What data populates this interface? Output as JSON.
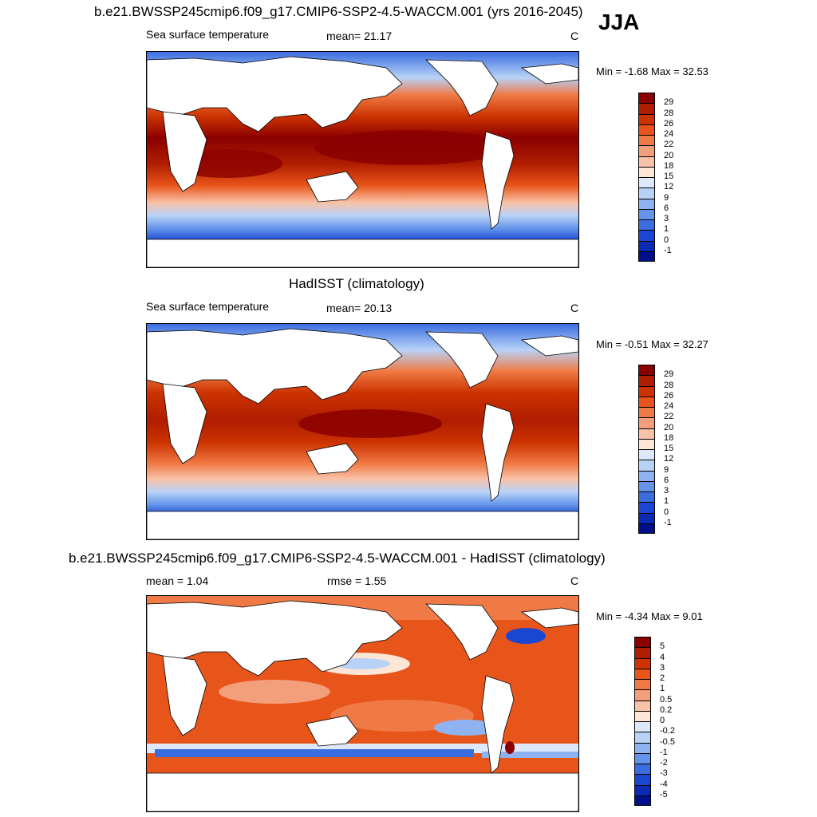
{
  "season": "JJA",
  "panels": [
    {
      "id": "model",
      "title": "b.e21.BWSSP245cmip6.f09_g17.CMIP6-SSP2-4.5-WACCM.001 (yrs 2016-2045)",
      "left_label": "Sea surface temperature",
      "center_label": "mean=  21.17",
      "right_label": "C",
      "minmax": "Min =  -1.68 Max =  32.53",
      "colorbar": {
        "ticks": [
          "29",
          "28",
          "26",
          "24",
          "22",
          "20",
          "18",
          "15",
          "12",
          "9",
          "6",
          "3",
          "1",
          "0",
          "-1"
        ],
        "colors": [
          "#8b0000",
          "#b01d00",
          "#cc3300",
          "#e8551a",
          "#f07a45",
          "#f49f7b",
          "#f8c2a8",
          "#fde6d6",
          "#dde9fb",
          "#b8d2f7",
          "#8eb3f0",
          "#6394ea",
          "#3a6ee0",
          "#1a47d2",
          "#0b2ab5",
          "#00108a"
        ]
      }
    },
    {
      "id": "obs",
      "title": "HadISST (climatology)",
      "left_label": "Sea surface temperature",
      "center_label": "mean=  20.13",
      "right_label": "C",
      "minmax": "Min =  -0.51 Max =  32.27",
      "colorbar": {
        "ticks": [
          "29",
          "28",
          "26",
          "24",
          "22",
          "20",
          "18",
          "15",
          "12",
          "9",
          "6",
          "3",
          "1",
          "0",
          "-1"
        ],
        "colors": [
          "#8b0000",
          "#b01d00",
          "#cc3300",
          "#e8551a",
          "#f07a45",
          "#f49f7b",
          "#f8c2a8",
          "#fde6d6",
          "#dde9fb",
          "#b8d2f7",
          "#8eb3f0",
          "#6394ea",
          "#3a6ee0",
          "#1a47d2",
          "#0b2ab5",
          "#00108a"
        ]
      }
    },
    {
      "id": "diff",
      "title": "b.e21.BWSSP245cmip6.f09_g17.CMIP6-SSP2-4.5-WACCM.001 - HadISST (climatology)",
      "left_label": "mean =   1.04",
      "center_label": "rmse =   1.55",
      "right_label": "C",
      "minmax": "Min =  -4.34 Max =   9.01",
      "colorbar": {
        "ticks": [
          "5",
          "4",
          "3",
          "2",
          "1",
          "0.5",
          "0.2",
          "0",
          "-0.2",
          "-0.5",
          "-1",
          "-2",
          "-3",
          "-4",
          "-5"
        ],
        "colors": [
          "#8b0000",
          "#b01d00",
          "#cc3300",
          "#e8551a",
          "#f07a45",
          "#f49f7b",
          "#f8c2a8",
          "#fde6d6",
          "#dde9fb",
          "#b8d2f7",
          "#8eb3f0",
          "#6394ea",
          "#3a6ee0",
          "#1a47d2",
          "#0b2ab5",
          "#00108a"
        ]
      }
    }
  ]
}
